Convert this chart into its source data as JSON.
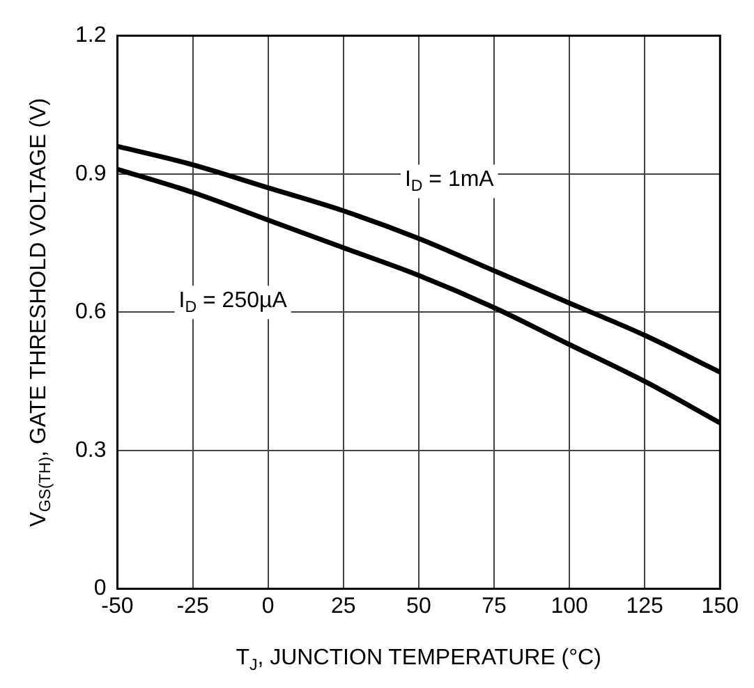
{
  "chart_data": {
    "type": "line",
    "xlabel": "T$_{J}$, JUNCTION TEMPERATURE (°C)",
    "ylabel": "V$_{GS(TH)}$, GATE THRESHOLD VOLTAGE (V)",
    "x": [
      -50,
      -25,
      0,
      25,
      50,
      75,
      100,
      125,
      150
    ],
    "series": [
      {
        "name": "I$_{D}$ = 1mA",
        "color": "#000000",
        "values": [
          0.96,
          0.92,
          0.87,
          0.82,
          0.76,
          0.69,
          0.62,
          0.55,
          0.47
        ]
      },
      {
        "name": "I$_{D}$ = 250µA",
        "color": "#000000",
        "values": [
          0.91,
          0.86,
          0.8,
          0.74,
          0.68,
          0.61,
          0.53,
          0.45,
          0.36
        ]
      }
    ],
    "xlim": [
      -50,
      150
    ],
    "xticks": [
      -50,
      -25,
      0,
      25,
      50,
      75,
      100,
      125,
      150
    ],
    "ylim": [
      0,
      1.2
    ],
    "yticks": [
      0,
      0.3,
      0.6,
      0.9,
      1.2
    ],
    "grid": true,
    "legend": false,
    "marker": "none",
    "line_style": "solid"
  }
}
